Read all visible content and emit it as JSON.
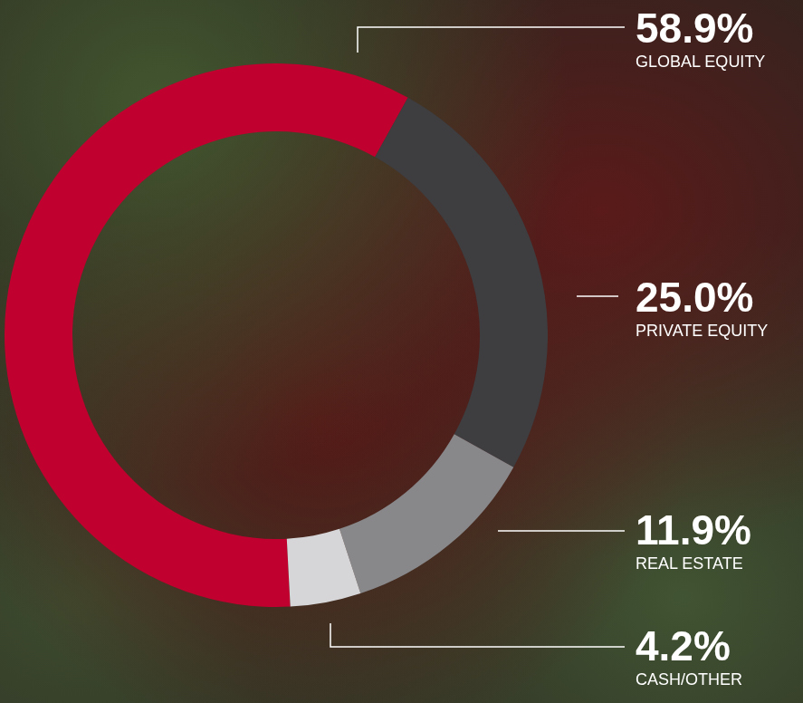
{
  "chart_data": {
    "type": "doughnut",
    "categories": [
      "GLOBAL EQUITY",
      "PRIVATE EQUITY",
      "REAL ESTATE",
      "CASH/OTHER"
    ],
    "values": [
      58.9,
      25.0,
      11.9,
      4.2
    ],
    "value_labels": [
      "58.9%",
      "25.0%",
      "11.9%",
      "4.2%"
    ],
    "colors": [
      "#c0002f",
      "#3e3d40",
      "#88888b",
      "#d6d6d8"
    ],
    "data_labels": true
  }
}
